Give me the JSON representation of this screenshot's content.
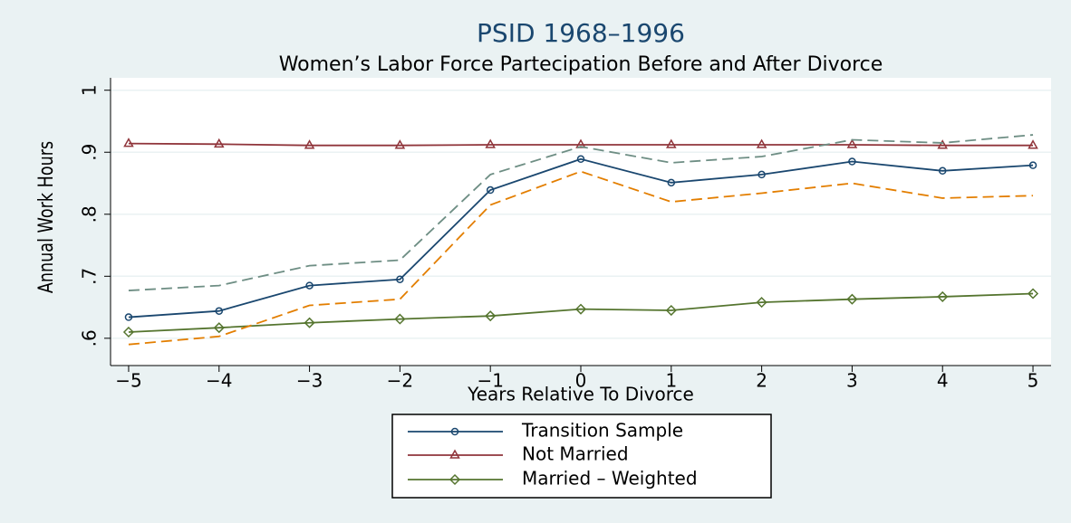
{
  "chart_data": {
    "type": "line",
    "title": "PSID 1968–1996",
    "subtitle": "Women’s Labor Force Partecipation Before and After Divorce",
    "x_label": "Years Relative To Divorce",
    "y_label": "Annual Work Hours",
    "x": [
      -5,
      -4,
      -3,
      -2,
      -1,
      0,
      1,
      2,
      3,
      4,
      5
    ],
    "xlim": [
      -5.2,
      5.2
    ],
    "xticks": [
      {
        "value": -5,
        "label": "−5"
      },
      {
        "value": -4,
        "label": "−4"
      },
      {
        "value": -3,
        "label": "−3"
      },
      {
        "value": -2,
        "label": "−2"
      },
      {
        "value": -1,
        "label": "−1"
      },
      0,
      1,
      2,
      3,
      4,
      5
    ],
    "ylim": [
      0.556,
      1.02
    ],
    "yticks": [
      {
        "value": 0.6,
        "label": ".6"
      },
      {
        "value": 0.7,
        "label": ".7"
      },
      {
        "value": 0.8,
        "label": ".8"
      },
      {
        "value": 0.9,
        "label": ".9"
      },
      1
    ],
    "grid": true,
    "legend": "bottom",
    "series": [
      {
        "name": "Transition Sample",
        "color": "#1a476f",
        "marker": "circle",
        "values": [
          0.634,
          0.644,
          0.685,
          0.695,
          0.839,
          0.889,
          0.851,
          0.864,
          0.885,
          0.87,
          0.879
        ]
      },
      {
        "name": "Not Married",
        "color": "#90353b",
        "marker": "triangle",
        "values": [
          0.914,
          0.913,
          0.911,
          0.911,
          0.912,
          0.912,
          0.912,
          0.912,
          0.912,
          0.911,
          0.911
        ]
      },
      {
        "name": "Married – Weighted",
        "color": "#55752f",
        "marker": "diamond",
        "values": [
          0.61,
          0.617,
          0.625,
          0.631,
          0.636,
          0.647,
          0.645,
          0.658,
          0.663,
          0.667,
          0.672
        ]
      },
      {
        "color": "#6e8e84",
        "dash": true,
        "values": [
          0.677,
          0.685,
          0.717,
          0.726,
          0.864,
          0.909,
          0.883,
          0.893,
          0.92,
          0.915,
          0.928
        ]
      },
      {
        "color": "#e37e00",
        "dash": true,
        "values": [
          0.59,
          0.603,
          0.653,
          0.663,
          0.815,
          0.869,
          0.82,
          0.834,
          0.85,
          0.826,
          0.83
        ]
      }
    ]
  }
}
